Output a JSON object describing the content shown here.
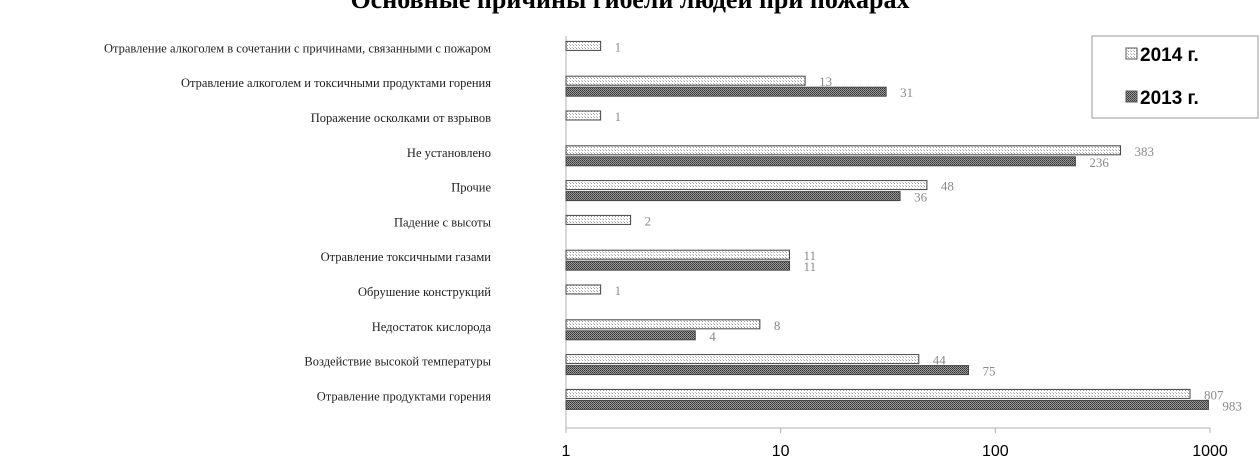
{
  "chart_data": {
    "type": "bar",
    "orientation": "horizontal",
    "title": "Основные причины гибели людей при пожарах",
    "x_scale": "log",
    "xlim": [
      1,
      1000
    ],
    "x_ticks": [
      "1",
      "10",
      "100",
      "1000"
    ],
    "legend_position": "top-right",
    "categories": [
      "Отравление алкоголем в сочетании с причинами, связанными с пожаром",
      "Отравление алкоголем и токсичными продуктами горения",
      "Поражение осколками от взрывов",
      "Не установлено",
      "Прочие",
      "Падение с высоты",
      "Отравление токсичными газами",
      "Обрушение конструкций",
      "Недостаток кислорода",
      "Воздействие высокой температуры",
      "Отравление продуктами горения"
    ],
    "series": [
      {
        "name": "2014 г.",
        "values": [
          1,
          13,
          1,
          383,
          48,
          2,
          11,
          1,
          8,
          44,
          807
        ]
      },
      {
        "name": "2013 г.",
        "values": [
          null,
          31,
          null,
          236,
          36,
          null,
          11,
          null,
          4,
          75,
          983
        ]
      }
    ]
  }
}
